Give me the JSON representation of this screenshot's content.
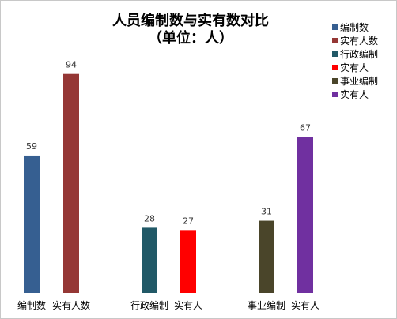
{
  "chart_data": {
    "type": "bar",
    "title": "人员编制数与实有数对比",
    "subtitle": "（单位：人）",
    "categories": [
      "编制数",
      "实有人数",
      "行政编制",
      "实有人",
      "事业编制",
      "实有人"
    ],
    "values": [
      59,
      94,
      28,
      27,
      31,
      67
    ],
    "colors": [
      "#365F91",
      "#953735",
      "#215967",
      "#FF0000",
      "#4A452A",
      "#7030A0"
    ],
    "groups": [
      [
        0,
        1
      ],
      [
        2,
        3
      ],
      [
        4,
        5
      ]
    ],
    "ylim": [
      0,
      100
    ],
    "grid": false,
    "legend": {
      "position": "right",
      "entries": [
        "编制数",
        "实有人数",
        "行政编制",
        "实有人",
        "事业编制",
        "实有人"
      ]
    }
  }
}
